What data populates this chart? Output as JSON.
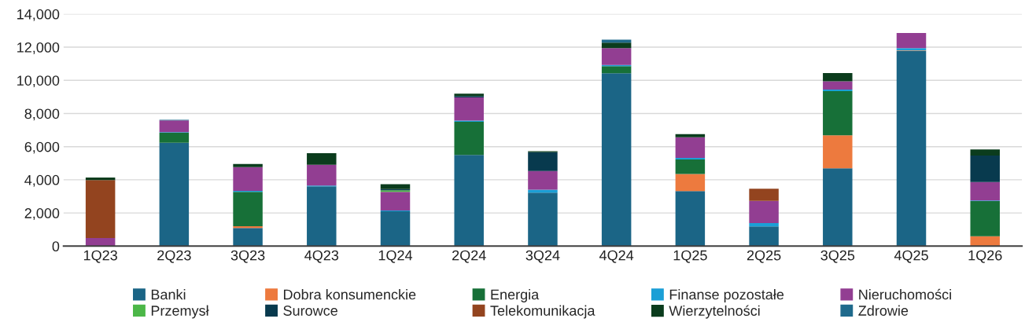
{
  "chart_data": {
    "type": "bar",
    "stacked": true,
    "categories": [
      "1Q23",
      "2Q23",
      "3Q23",
      "4Q23",
      "1Q24",
      "2Q24",
      "3Q24",
      "4Q24",
      "1Q25",
      "2Q25",
      "3Q25",
      "4Q25",
      "1Q26"
    ],
    "series": [
      {
        "name": "Banki",
        "color": "#1b6586",
        "values": [
          null,
          6240,
          1090,
          3600,
          2100,
          5500,
          3220,
          10430,
          3320,
          1190,
          4690,
          11760,
          null
        ]
      },
      {
        "name": "Dobra konsumenckie",
        "color": "#ed7a3e",
        "values": [
          null,
          null,
          110,
          null,
          null,
          null,
          null,
          null,
          1030,
          null,
          1990,
          40,
          600
        ]
      },
      {
        "name": "Energia",
        "color": "#177038",
        "values": [
          null,
          600,
          2070,
          null,
          null,
          2000,
          null,
          420,
          880,
          null,
          2670,
          null,
          2120
        ]
      },
      {
        "name": "Finanse pozostałe",
        "color": "#1b9fd6",
        "values": [
          null,
          30,
          60,
          50,
          50,
          70,
          180,
          80,
          90,
          200,
          100,
          140,
          30
        ]
      },
      {
        "name": "Nieruchomości",
        "color": "#923e92",
        "values": [
          490,
          710,
          1440,
          1260,
          1120,
          1400,
          1130,
          1010,
          1250,
          1340,
          490,
          910,
          1120
        ]
      },
      {
        "name": "Przemysł",
        "color": "#4cb748",
        "values": [
          null,
          null,
          null,
          null,
          100,
          null,
          null,
          null,
          null,
          null,
          null,
          null,
          null
        ]
      },
      {
        "name": "Surowce",
        "color": "#083a4e",
        "values": [
          null,
          null,
          null,
          null,
          70,
          80,
          1140,
          null,
          null,
          null,
          null,
          null,
          1600
        ]
      },
      {
        "name": "Telekomunikacja",
        "color": "#93441f",
        "values": [
          3490,
          null,
          null,
          null,
          null,
          null,
          null,
          null,
          null,
          730,
          null,
          null,
          null
        ]
      },
      {
        "name": "Wierzytelności",
        "color": "#0b3c1d",
        "values": [
          160,
          null,
          180,
          700,
          290,
          150,
          50,
          340,
          190,
          null,
          500,
          null,
          360
        ]
      },
      {
        "name": "Zdrowie",
        "color": "#1f6a8c",
        "values": [
          null,
          40,
          null,
          null,
          null,
          null,
          null,
          170,
          null,
          null,
          null,
          null,
          null
        ]
      }
    ],
    "ylim": [
      0,
      14000
    ],
    "yticks": [
      {
        "value": 0,
        "label": "0"
      },
      {
        "value": 2000,
        "label": "2,000"
      },
      {
        "value": 4000,
        "label": "4,000"
      },
      {
        "value": 6000,
        "label": "6,000"
      },
      {
        "value": 8000,
        "label": "8,000"
      },
      {
        "value": 10000,
        "label": "10,000"
      },
      {
        "value": 12000,
        "label": "12,000"
      },
      {
        "value": 14000,
        "label": "14,000"
      }
    ],
    "grid": "y",
    "legend": "bottom"
  }
}
